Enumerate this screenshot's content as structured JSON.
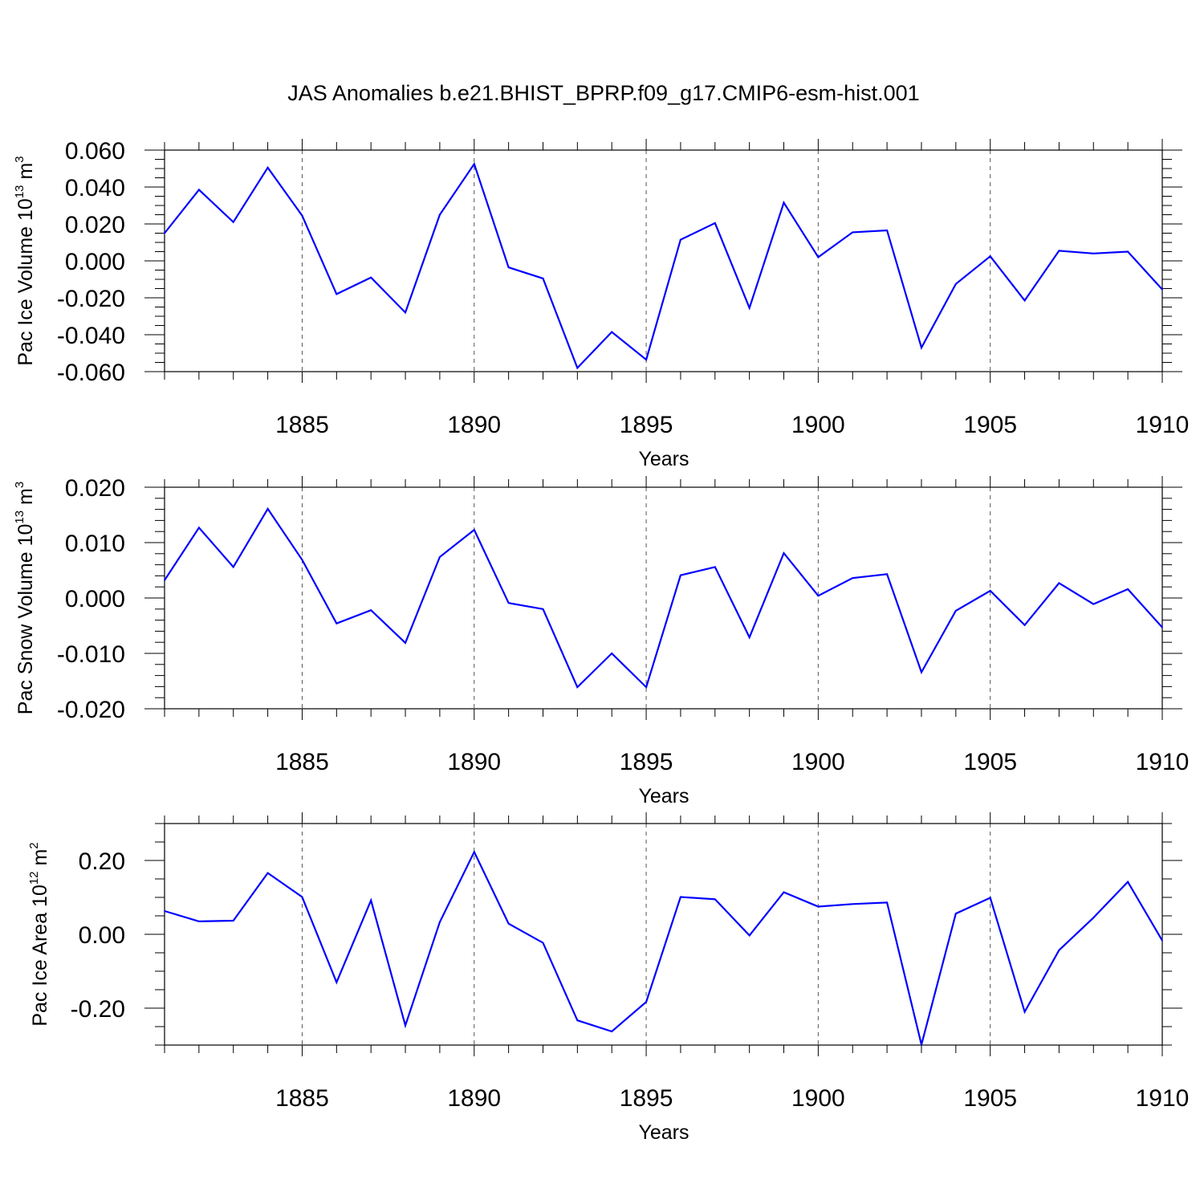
{
  "figure": {
    "title": "JAS Anomalies b.e21.BHIST_BPRP.f09_g17.CMIP6-esm-hist.001"
  },
  "chart_data": [
    {
      "type": "line",
      "name": "pac-ice-volume",
      "ylabel": {
        "prefix": "Pac Ice Volume 10",
        "exp": "13",
        "unit": " m",
        "unit_exp": "3"
      },
      "xlabel": "Years",
      "xlim": [
        1881,
        1910
      ],
      "ylim": [
        -0.06,
        0.06
      ],
      "x_ticks": [
        1885,
        1890,
        1895,
        1900,
        1905,
        1910
      ],
      "x_tick_labels": [
        "1885",
        "1890",
        "1895",
        "1900",
        "1905",
        "1910"
      ],
      "y_ticks": [
        -0.06,
        -0.04,
        -0.02,
        0.0,
        0.02,
        0.04,
        0.06
      ],
      "y_tick_labels": [
        "-0.060",
        "-0.040",
        "-0.020",
        "0.000",
        "0.020",
        "0.040",
        "0.060"
      ],
      "y_minor_step": 0.005,
      "grid": "dashed vertical at major x ticks",
      "color": "#0000ff",
      "x": [
        1881,
        1882,
        1883,
        1884,
        1885,
        1886,
        1887,
        1888,
        1889,
        1890,
        1891,
        1892,
        1893,
        1894,
        1895,
        1896,
        1897,
        1898,
        1899,
        1900,
        1901,
        1902,
        1903,
        1904,
        1905,
        1906,
        1907,
        1908,
        1909,
        1910
      ],
      "y": [
        0.015,
        0.0385,
        0.021,
        0.0505,
        0.0245,
        -0.018,
        -0.009,
        -0.028,
        0.025,
        0.0525,
        -0.0035,
        -0.0095,
        -0.058,
        -0.0385,
        -0.0535,
        0.0115,
        0.0205,
        -0.0255,
        0.0315,
        0.002,
        0.0155,
        0.0165,
        -0.047,
        -0.0125,
        0.0025,
        -0.0215,
        0.0055,
        0.004,
        0.005,
        -0.0155
      ]
    },
    {
      "type": "line",
      "name": "pac-snow-volume",
      "ylabel": {
        "prefix": "Pac Snow Volume 10",
        "exp": "13",
        "unit": " m",
        "unit_exp": "3"
      },
      "xlabel": "Years",
      "xlim": [
        1881,
        1910
      ],
      "ylim": [
        -0.02,
        0.02
      ],
      "x_ticks": [
        1885,
        1890,
        1895,
        1900,
        1905,
        1910
      ],
      "x_tick_labels": [
        "1885",
        "1890",
        "1895",
        "1900",
        "1905",
        "1910"
      ],
      "y_ticks": [
        -0.02,
        -0.01,
        0.0,
        0.01,
        0.02
      ],
      "y_tick_labels": [
        "-0.020",
        "-0.010",
        "0.000",
        "0.010",
        "0.020"
      ],
      "y_minor_step": 0.002,
      "grid": "dashed vertical at major x ticks",
      "color": "#0000ff",
      "x": [
        1881,
        1882,
        1883,
        1884,
        1885,
        1886,
        1887,
        1888,
        1889,
        1890,
        1891,
        1892,
        1893,
        1894,
        1895,
        1896,
        1897,
        1898,
        1899,
        1900,
        1901,
        1902,
        1903,
        1904,
        1905,
        1906,
        1907,
        1908,
        1909,
        1910
      ],
      "y": [
        0.0032,
        0.0127,
        0.0056,
        0.0161,
        0.0069,
        -0.0046,
        -0.0022,
        -0.0081,
        0.0074,
        0.0123,
        -0.0009,
        -0.002,
        -0.0161,
        -0.01,
        -0.0161,
        0.0041,
        0.0056,
        -0.0071,
        0.0081,
        0.0004,
        0.0036,
        0.0043,
        -0.0134,
        -0.0023,
        0.0013,
        -0.0049,
        0.0027,
        -0.0011,
        0.0016,
        -0.0053
      ]
    },
    {
      "type": "line",
      "name": "pac-ice-area",
      "ylabel": {
        "prefix": "Pac Ice Area 10",
        "exp": "12",
        "unit": " m",
        "unit_exp": "2"
      },
      "xlabel": "Years",
      "xlim": [
        1881,
        1910
      ],
      "ylim": [
        -0.3,
        0.3
      ],
      "x_ticks": [
        1885,
        1890,
        1895,
        1900,
        1905,
        1910
      ],
      "x_tick_labels": [
        "1885",
        "1890",
        "1895",
        "1900",
        "1905",
        "1910"
      ],
      "y_ticks": [
        -0.2,
        0.0,
        0.2
      ],
      "y_tick_labels": [
        "-0.20",
        "0.00",
        "0.20"
      ],
      "y_minor_step": 0.05,
      "grid": "dashed vertical at major x ticks",
      "color": "#0000ff",
      "x": [
        1881,
        1882,
        1883,
        1884,
        1885,
        1886,
        1887,
        1888,
        1889,
        1890,
        1891,
        1892,
        1893,
        1894,
        1895,
        1896,
        1897,
        1898,
        1899,
        1900,
        1901,
        1902,
        1903,
        1904,
        1905,
        1906,
        1907,
        1908,
        1909,
        1910
      ],
      "y": [
        0.063,
        0.035,
        0.037,
        0.166,
        0.101,
        -0.13,
        0.092,
        -0.247,
        0.033,
        0.223,
        0.029,
        -0.023,
        -0.233,
        -0.263,
        -0.183,
        0.101,
        0.095,
        -0.003,
        0.114,
        0.075,
        0.082,
        0.086,
        -0.299,
        0.056,
        0.099,
        -0.21,
        -0.043,
        0.045,
        0.142,
        -0.017
      ]
    }
  ]
}
